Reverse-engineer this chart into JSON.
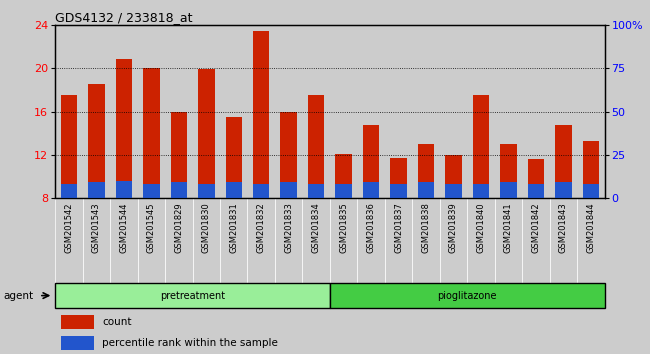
{
  "title": "GDS4132 / 233818_at",
  "categories": [
    "GSM201542",
    "GSM201543",
    "GSM201544",
    "GSM201545",
    "GSM201829",
    "GSM201830",
    "GSM201831",
    "GSM201832",
    "GSM201833",
    "GSM201834",
    "GSM201835",
    "GSM201836",
    "GSM201837",
    "GSM201838",
    "GSM201839",
    "GSM201840",
    "GSM201841",
    "GSM201842",
    "GSM201843",
    "GSM201844"
  ],
  "count_values": [
    17.5,
    18.5,
    20.8,
    20.0,
    16.0,
    19.9,
    15.5,
    23.4,
    16.0,
    17.5,
    12.1,
    14.8,
    11.7,
    13.0,
    12.0,
    17.5,
    13.0,
    11.6,
    14.8,
    13.3
  ],
  "percentile_values": [
    9.3,
    9.5,
    9.6,
    9.3,
    9.5,
    9.3,
    9.5,
    9.3,
    9.5,
    9.3,
    9.3,
    9.5,
    9.3,
    9.5,
    9.3,
    9.3,
    9.5,
    9.3,
    9.5,
    9.3
  ],
  "ylim_left": [
    8,
    24
  ],
  "ylim_right": [
    0,
    100
  ],
  "yticks_left": [
    8,
    12,
    16,
    20,
    24
  ],
  "yticks_right": [
    0,
    25,
    50,
    75,
    100
  ],
  "ytick_labels_right": [
    "0",
    "25",
    "50",
    "75",
    "100%"
  ],
  "bar_color_red": "#cc2200",
  "bar_color_blue": "#2255cc",
  "baseline": 8.0,
  "groups": [
    {
      "label": "pretreatment",
      "start": 0,
      "end": 10,
      "color": "#99ee99"
    },
    {
      "label": "pioglitazone",
      "start": 10,
      "end": 20,
      "color": "#44cc44"
    }
  ],
  "group_row_label": "agent",
  "legend_items": [
    {
      "label": "count",
      "color": "#cc2200"
    },
    {
      "label": "percentile rank within the sample",
      "color": "#2255cc"
    }
  ],
  "background_color": "#cccccc",
  "col_bg_color": "#cccccc",
  "plot_bg_color": "#ffffff",
  "grid_color": "#000000",
  "title_fontsize": 9,
  "tick_fontsize": 6,
  "legend_fontsize": 7.5
}
